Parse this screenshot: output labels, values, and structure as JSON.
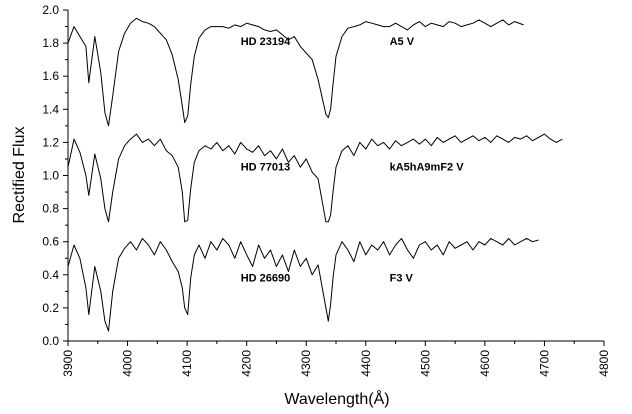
{
  "chart_data": {
    "type": "line",
    "xlabel": "Wavelength(Å)",
    "ylabel": "Rectified Flux",
    "xlim": [
      3900,
      4800
    ],
    "ylim": [
      0.0,
      2.0
    ],
    "x_ticks": [
      3900,
      4000,
      4100,
      4200,
      4300,
      4400,
      4500,
      4600,
      4700,
      4800
    ],
    "y_ticks": [
      "0.0",
      "0.2",
      "0.4",
      "0.6",
      "0.8",
      "1.0",
      "1.2",
      "1.4",
      "1.6",
      "1.8",
      "2.0"
    ],
    "grid": false,
    "legend": "none",
    "line_color": "#000000",
    "annotations": [
      {
        "text": "HD 23194",
        "x": 4190,
        "y": 1.79
      },
      {
        "text": "A5 V",
        "x": 4440,
        "y": 1.79
      },
      {
        "text": "HD 77013",
        "x": 4190,
        "y": 1.03
      },
      {
        "text": "kA5hA9mF2 V",
        "x": 4440,
        "y": 1.03
      },
      {
        "text": "HD 26690",
        "x": 4190,
        "y": 0.36
      },
      {
        "text": "F3 V",
        "x": 4440,
        "y": 0.36
      }
    ],
    "series": [
      {
        "x": [
          3900,
          3910,
          3920,
          3930,
          3935,
          3945,
          3955,
          3962,
          3968,
          3975,
          3985,
          3995,
          4005,
          4015,
          4025,
          4035,
          4045,
          4055,
          4065,
          4075,
          4085,
          4092,
          4096,
          4101,
          4106,
          4112,
          4120,
          4130,
          4140,
          4150,
          4160,
          4170,
          4180,
          4190,
          4200,
          4210,
          4220,
          4230,
          4240,
          4250,
          4260,
          4270,
          4280,
          4290,
          4300,
          4310,
          4320,
          4328,
          4333,
          4337,
          4341,
          4345,
          4350,
          4360,
          4370,
          4380,
          4390,
          4400,
          4410,
          4420,
          4430,
          4440,
          4450,
          4460,
          4470,
          4480,
          4490,
          4500,
          4510,
          4520,
          4530,
          4540,
          4550,
          4560,
          4570,
          4580,
          4590,
          4600,
          4610,
          4620,
          4630,
          4640,
          4650,
          4665
        ],
        "values": [
          1.8,
          1.9,
          1.84,
          1.78,
          1.56,
          1.84,
          1.62,
          1.38,
          1.3,
          1.48,
          1.75,
          1.86,
          1.92,
          1.95,
          1.93,
          1.92,
          1.9,
          1.86,
          1.82,
          1.73,
          1.58,
          1.42,
          1.32,
          1.36,
          1.55,
          1.72,
          1.83,
          1.88,
          1.9,
          1.9,
          1.9,
          1.89,
          1.91,
          1.9,
          1.92,
          1.91,
          1.9,
          1.88,
          1.87,
          1.88,
          1.85,
          1.82,
          1.84,
          1.78,
          1.74,
          1.7,
          1.58,
          1.45,
          1.37,
          1.35,
          1.4,
          1.55,
          1.72,
          1.84,
          1.89,
          1.9,
          1.91,
          1.93,
          1.92,
          1.91,
          1.9,
          1.9,
          1.92,
          1.9,
          1.88,
          1.91,
          1.93,
          1.9,
          1.92,
          1.91,
          1.9,
          1.93,
          1.92,
          1.9,
          1.91,
          1.92,
          1.94,
          1.92,
          1.9,
          1.92,
          1.94,
          1.91,
          1.93,
          1.91
        ]
      },
      {
        "x": [
          3900,
          3910,
          3920,
          3930,
          3935,
          3945,
          3955,
          3962,
          3968,
          3975,
          3985,
          3995,
          4005,
          4015,
          4025,
          4035,
          4045,
          4055,
          4065,
          4075,
          4085,
          4092,
          4096,
          4101,
          4106,
          4112,
          4120,
          4130,
          4140,
          4150,
          4160,
          4170,
          4180,
          4190,
          4200,
          4210,
          4220,
          4230,
          4240,
          4250,
          4260,
          4270,
          4280,
          4290,
          4300,
          4310,
          4320,
          4328,
          4333,
          4337,
          4341,
          4345,
          4350,
          4360,
          4370,
          4380,
          4390,
          4400,
          4410,
          4420,
          4430,
          4440,
          4450,
          4460,
          4470,
          4480,
          4490,
          4500,
          4510,
          4520,
          4530,
          4540,
          4550,
          4560,
          4570,
          4580,
          4590,
          4600,
          4610,
          4620,
          4630,
          4640,
          4650,
          4660,
          4670,
          4680,
          4690,
          4700,
          4710,
          4720,
          4730
        ],
        "values": [
          1.05,
          1.22,
          1.14,
          1.0,
          0.88,
          1.13,
          0.98,
          0.8,
          0.72,
          0.9,
          1.1,
          1.18,
          1.22,
          1.25,
          1.2,
          1.22,
          1.18,
          1.22,
          1.15,
          1.12,
          1.05,
          0.9,
          0.72,
          0.73,
          0.92,
          1.08,
          1.15,
          1.18,
          1.16,
          1.2,
          1.15,
          1.18,
          1.13,
          1.2,
          1.16,
          1.14,
          1.18,
          1.12,
          1.15,
          1.1,
          1.16,
          1.08,
          1.12,
          1.05,
          1.1,
          1.02,
          0.98,
          0.82,
          0.72,
          0.72,
          0.76,
          0.9,
          1.05,
          1.15,
          1.18,
          1.12,
          1.2,
          1.16,
          1.22,
          1.18,
          1.2,
          1.16,
          1.21,
          1.18,
          1.2,
          1.22,
          1.19,
          1.22,
          1.18,
          1.23,
          1.2,
          1.22,
          1.24,
          1.2,
          1.22,
          1.24,
          1.21,
          1.23,
          1.2,
          1.24,
          1.22,
          1.2,
          1.23,
          1.22,
          1.24,
          1.21,
          1.23,
          1.25,
          1.22,
          1.2,
          1.22
        ]
      },
      {
        "x": [
          3900,
          3910,
          3920,
          3930,
          3935,
          3945,
          3955,
          3962,
          3968,
          3975,
          3985,
          3995,
          4005,
          4015,
          4025,
          4035,
          4045,
          4055,
          4065,
          4075,
          4085,
          4092,
          4096,
          4101,
          4106,
          4112,
          4120,
          4130,
          4140,
          4150,
          4160,
          4170,
          4180,
          4190,
          4200,
          4210,
          4220,
          4230,
          4240,
          4250,
          4260,
          4270,
          4280,
          4290,
          4300,
          4310,
          4320,
          4328,
          4333,
          4337,
          4341,
          4345,
          4350,
          4360,
          4370,
          4380,
          4390,
          4400,
          4410,
          4420,
          4430,
          4440,
          4450,
          4460,
          4470,
          4480,
          4490,
          4500,
          4510,
          4520,
          4530,
          4540,
          4550,
          4560,
          4570,
          4580,
          4590,
          4600,
          4610,
          4620,
          4630,
          4640,
          4650,
          4660,
          4670,
          4680,
          4690
        ],
        "values": [
          0.45,
          0.58,
          0.5,
          0.32,
          0.16,
          0.45,
          0.3,
          0.12,
          0.06,
          0.3,
          0.5,
          0.56,
          0.6,
          0.55,
          0.62,
          0.58,
          0.52,
          0.6,
          0.55,
          0.48,
          0.42,
          0.32,
          0.2,
          0.16,
          0.38,
          0.52,
          0.58,
          0.5,
          0.6,
          0.55,
          0.62,
          0.58,
          0.5,
          0.6,
          0.52,
          0.45,
          0.58,
          0.5,
          0.55,
          0.45,
          0.52,
          0.42,
          0.55,
          0.45,
          0.5,
          0.4,
          0.46,
          0.3,
          0.2,
          0.12,
          0.22,
          0.38,
          0.52,
          0.6,
          0.55,
          0.48,
          0.6,
          0.52,
          0.58,
          0.55,
          0.6,
          0.52,
          0.58,
          0.62,
          0.55,
          0.5,
          0.58,
          0.6,
          0.55,
          0.58,
          0.52,
          0.6,
          0.56,
          0.58,
          0.6,
          0.55,
          0.6,
          0.58,
          0.62,
          0.6,
          0.58,
          0.62,
          0.58,
          0.6,
          0.62,
          0.6,
          0.61
        ]
      }
    ]
  }
}
